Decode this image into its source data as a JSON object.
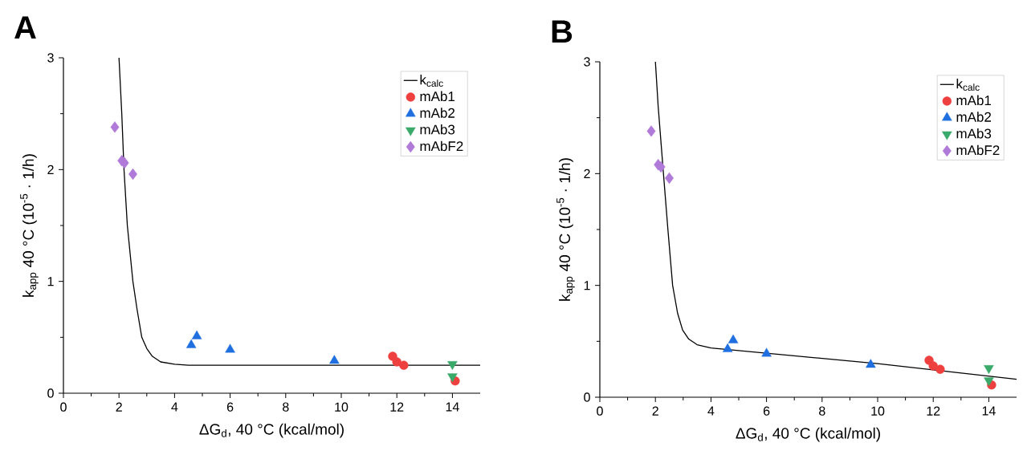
{
  "chart_data": [
    {
      "type": "scatter",
      "title": "A",
      "xlabel": "ΔG$_{d}$, 40 °C (kcal/mol)",
      "ylabel": "k$_{app}$ 40 °C (10$^{-5}$ · 1/h)",
      "xlim": [
        0,
        15
      ],
      "ylim": [
        0,
        3
      ],
      "xticks": [
        0,
        2,
        4,
        6,
        8,
        10,
        12,
        14
      ],
      "yticks": [
        0,
        1,
        2,
        3
      ],
      "legend": "top right",
      "grid": false,
      "series": [
        {
          "name": "k$_{calc}$",
          "type": "line",
          "color": "#000000",
          "marker": "none",
          "line_style": "solid",
          "x": [
            2.0,
            2.1,
            2.18,
            2.3,
            2.5,
            2.65,
            2.82,
            3.0,
            3.2,
            3.5,
            4.0,
            4.5,
            15
          ],
          "values": [
            3,
            2.5,
            2.0,
            1.5,
            1.0,
            0.75,
            0.5,
            0.4,
            0.33,
            0.28,
            0.26,
            0.25,
            0.25
          ]
        },
        {
          "name": "mAb1",
          "color": "#ef4040",
          "marker": "circle",
          "x": [
            11.85,
            12.0,
            12.25,
            14.1
          ],
          "values": [
            0.33,
            0.28,
            0.25,
            0.11
          ]
        },
        {
          "name": "mAb2",
          "color": "#1f6fe0",
          "marker": "triangle",
          "x": [
            4.6,
            4.8,
            6.0,
            9.75
          ],
          "values": [
            0.43,
            0.51,
            0.39,
            0.29
          ]
        },
        {
          "name": "mAb3",
          "color": "#3aaa6a",
          "marker": "triangle-down",
          "x": [
            14.0,
            14.0
          ],
          "values": [
            0.26,
            0.15
          ]
        },
        {
          "name": "mAbF2",
          "color": "#b07ad8",
          "marker": "diamond",
          "x": [
            1.85,
            2.1,
            2.2,
            2.5
          ],
          "values": [
            2.38,
            2.08,
            2.06,
            1.96
          ]
        }
      ]
    },
    {
      "type": "scatter",
      "title": "B",
      "xlabel": "ΔG$_{d}$, 40 °C (kcal/mol)",
      "ylabel": "k$_{app}$ 40 °C (10$^{-5}$ · 1/h)",
      "xlim": [
        0,
        15
      ],
      "ylim": [
        0,
        3
      ],
      "xticks": [
        0,
        2,
        4,
        6,
        8,
        10,
        12,
        14
      ],
      "yticks": [
        0,
        1,
        2,
        3
      ],
      "legend": "top right",
      "grid": false,
      "series": [
        {
          "name": "k$_{calc}$",
          "type": "line",
          "color": "#000000",
          "marker": "none",
          "line_style": "solid",
          "x": [
            2.0,
            2.1,
            2.29,
            2.45,
            2.62,
            2.8,
            2.98,
            3.2,
            3.5,
            4.0,
            10,
            15
          ],
          "values": [
            3,
            2.6,
            2.0,
            1.5,
            1.0,
            0.75,
            0.6,
            0.52,
            0.47,
            0.44,
            0.3,
            0.16
          ]
        },
        {
          "name": "mAb1",
          "color": "#ef4040",
          "marker": "circle",
          "x": [
            11.85,
            12.0,
            12.25,
            14.1
          ],
          "values": [
            0.33,
            0.28,
            0.25,
            0.11
          ]
        },
        {
          "name": "mAb2",
          "color": "#1f6fe0",
          "marker": "triangle",
          "x": [
            4.6,
            4.8,
            6.0,
            9.75
          ],
          "values": [
            0.43,
            0.51,
            0.39,
            0.29
          ]
        },
        {
          "name": "mAb3",
          "color": "#3aaa6a",
          "marker": "triangle-down",
          "x": [
            14.0,
            14.0
          ],
          "values": [
            0.26,
            0.15
          ]
        },
        {
          "name": "mAbF2",
          "color": "#b07ad8",
          "marker": "diamond",
          "x": [
            1.85,
            2.1,
            2.2,
            2.5
          ],
          "values": [
            2.38,
            2.08,
            2.06,
            1.96
          ]
        }
      ]
    }
  ]
}
